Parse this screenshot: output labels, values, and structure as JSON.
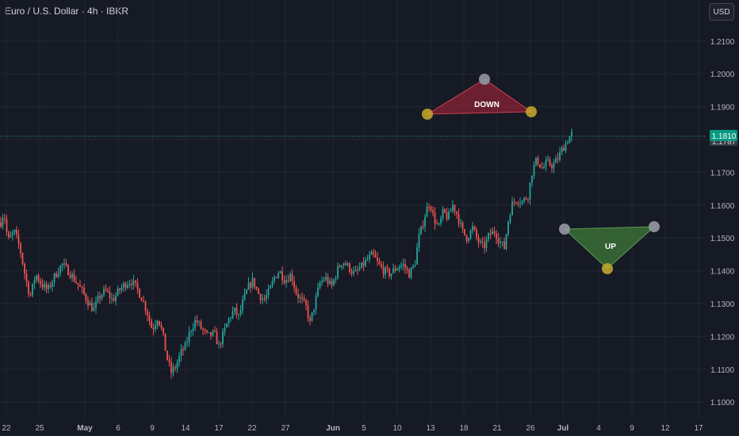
{
  "header": {
    "title": "Euro / U.S. Dollar · 4h · IBKR",
    "currency": "USD"
  },
  "colors": {
    "background": "#161a25",
    "grid": "#232733",
    "up": "#26a69a",
    "down": "#ef5350",
    "axis_text": "#b2b5be",
    "price_label_bg": "#089981",
    "prev_label_bg": "#363a45",
    "down_shape": "#b2243a",
    "up_shape": "#3f7a38",
    "point_yellow": "#c9ad2c",
    "point_gray": "#9598a1"
  },
  "chart_data": {
    "type": "candlestick",
    "title": "Euro / U.S. Dollar · 4h · IBKR",
    "y_ticks": [
      "1.2100",
      "1.2000",
      "1.1900",
      "1.1800",
      "1.1700",
      "1.1600",
      "1.1500",
      "1.1400",
      "1.1300",
      "1.1200",
      "1.1100",
      "1.1000"
    ],
    "ylim": [
      1.0945,
      1.2225
    ],
    "x_ticks": [
      "22",
      "25",
      "May",
      "6",
      "9",
      "14",
      "17",
      "22",
      "27",
      "Jun",
      "5",
      "10",
      "13",
      "18",
      "21",
      "26",
      "Jul",
      "4",
      "9",
      "12",
      "17"
    ],
    "last_price": "1.1810",
    "last_price_value": 1.181,
    "prev_close": "1.1787",
    "grid": true,
    "series_path": [
      [
        0,
        1.154
      ],
      [
        5,
        1.158
      ],
      [
        10,
        1.149
      ],
      [
        18,
        1.152
      ],
      [
        25,
        1.147
      ],
      [
        32,
        1.138
      ],
      [
        38,
        1.132
      ],
      [
        45,
        1.139
      ],
      [
        52,
        1.136
      ],
      [
        60,
        1.134
      ],
      [
        68,
        1.138
      ],
      [
        78,
        1.142
      ],
      [
        86,
        1.14
      ],
      [
        95,
        1.137
      ],
      [
        103,
        1.134
      ],
      [
        110,
        1.131
      ],
      [
        118,
        1.128
      ],
      [
        125,
        1.132
      ],
      [
        133,
        1.134
      ],
      [
        142,
        1.131
      ],
      [
        150,
        1.134
      ],
      [
        158,
        1.136
      ],
      [
        165,
        1.137
      ],
      [
        172,
        1.135
      ],
      [
        180,
        1.131
      ],
      [
        186,
        1.127
      ],
      [
        192,
        1.122
      ],
      [
        199,
        1.126
      ],
      [
        205,
        1.121
      ],
      [
        210,
        1.114
      ],
      [
        216,
        1.109
      ],
      [
        222,
        1.111
      ],
      [
        228,
        1.115
      ],
      [
        234,
        1.117
      ],
      [
        240,
        1.122
      ],
      [
        247,
        1.125
      ],
      [
        255,
        1.122
      ],
      [
        262,
        1.12
      ],
      [
        270,
        1.121
      ],
      [
        276,
        1.117
      ],
      [
        282,
        1.121
      ],
      [
        288,
        1.125
      ],
      [
        295,
        1.128
      ],
      [
        301,
        1.126
      ],
      [
        307,
        1.131
      ],
      [
        313,
        1.135
      ],
      [
        319,
        1.137
      ],
      [
        326,
        1.133
      ],
      [
        333,
        1.131
      ],
      [
        340,
        1.134
      ],
      [
        346,
        1.138
      ],
      [
        352,
        1.14
      ],
      [
        360,
        1.137
      ],
      [
        367,
        1.139
      ],
      [
        374,
        1.133
      ],
      [
        380,
        1.131
      ],
      [
        386,
        1.129
      ],
      [
        391,
        1.124
      ],
      [
        397,
        1.13
      ],
      [
        403,
        1.136
      ],
      [
        410,
        1.138
      ],
      [
        418,
        1.135
      ],
      [
        425,
        1.14
      ],
      [
        432,
        1.143
      ],
      [
        440,
        1.141
      ],
      [
        447,
        1.139
      ],
      [
        455,
        1.141
      ],
      [
        462,
        1.143
      ],
      [
        470,
        1.145
      ],
      [
        477,
        1.142
      ],
      [
        484,
        1.14
      ],
      [
        492,
        1.139
      ],
      [
        500,
        1.141
      ],
      [
        508,
        1.142
      ],
      [
        516,
        1.139
      ],
      [
        523,
        1.142
      ],
      [
        528,
        1.15
      ],
      [
        533,
        1.154
      ],
      [
        537,
        1.158
      ],
      [
        542,
        1.161
      ],
      [
        547,
        1.156
      ],
      [
        553,
        1.153
      ],
      [
        559,
        1.158
      ],
      [
        565,
        1.156
      ],
      [
        571,
        1.16
      ],
      [
        577,
        1.157
      ],
      [
        583,
        1.152
      ],
      [
        589,
        1.15
      ],
      [
        596,
        1.153
      ],
      [
        603,
        1.149
      ],
      [
        610,
        1.147
      ],
      [
        617,
        1.151
      ],
      [
        624,
        1.152
      ],
      [
        630,
        1.149
      ],
      [
        636,
        1.147
      ],
      [
        640,
        1.154
      ],
      [
        645,
        1.16
      ],
      [
        652,
        1.162
      ],
      [
        659,
        1.161
      ],
      [
        666,
        1.163
      ],
      [
        671,
        1.17
      ],
      [
        677,
        1.174
      ],
      [
        684,
        1.171
      ],
      [
        690,
        1.173
      ],
      [
        697,
        1.172
      ],
      [
        703,
        1.174
      ],
      [
        709,
        1.177
      ],
      [
        714,
        1.179
      ],
      [
        719,
        1.181
      ],
      [
        722,
        1.182
      ]
    ],
    "drawings": [
      {
        "type": "triangle",
        "label": "DOWN"
      },
      {
        "type": "triangle",
        "label": "UP"
      }
    ]
  }
}
